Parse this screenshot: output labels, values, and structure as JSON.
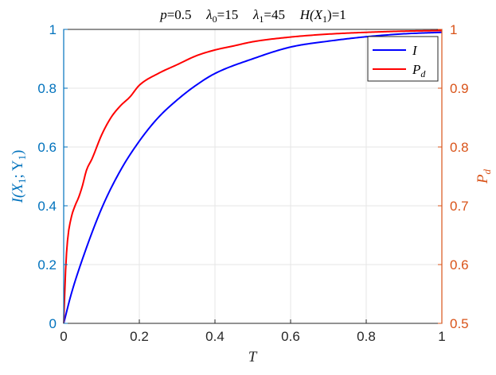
{
  "chart_data": {
    "type": "line",
    "title": {
      "p_label": "p",
      "p_value": "=0.5",
      "lambda0_label": "λ",
      "lambda0_sub": "0",
      "lambda0_value": "=15",
      "lambda1_label": "λ",
      "lambda1_sub": "1",
      "lambda1_value": "=45",
      "entropy_label": "H(X",
      "entropy_sub": "1",
      "entropy_close": ")",
      "entropy_value": "=1"
    },
    "xlabel": "T",
    "ylabel_left": {
      "main": "I(X",
      "sub1": "1",
      "mid": "; Y",
      "sub2": "1",
      "close": ")"
    },
    "ylabel_right": {
      "main": "P",
      "sub": "d"
    },
    "xlim": [
      0,
      1
    ],
    "ylim_left": [
      0,
      1
    ],
    "ylim_right": [
      0.5,
      1
    ],
    "x_ticks": [
      "0",
      "0.2",
      "0.4",
      "0.6",
      "0.8",
      "1"
    ],
    "y_ticks_left": [
      "0",
      "0.2",
      "0.4",
      "0.6",
      "0.8",
      "1"
    ],
    "y_ticks_right": [
      "0.5",
      "0.6",
      "0.7",
      "0.8",
      "0.9",
      "1"
    ],
    "grid": true,
    "legend_position": "top-right",
    "legend": [
      {
        "label": "I",
        "sub": "",
        "color": "#0000ff"
      },
      {
        "label": "P",
        "sub": "d",
        "color": "#ff0000"
      }
    ],
    "colors": {
      "left_axis": "#0072bd",
      "right_axis": "#d95319",
      "I": "#0000ff",
      "Pd": "#ff0000",
      "grid": "#e6e6e6"
    },
    "series": [
      {
        "name": "I",
        "axis": "left",
        "x": [
          0,
          0.02,
          0.05,
          0.1,
          0.15,
          0.2,
          0.25,
          0.3,
          0.35,
          0.4,
          0.5,
          0.6,
          0.7,
          0.8,
          0.9,
          1.0
        ],
        "y": [
          0,
          0.1,
          0.22,
          0.39,
          0.52,
          0.62,
          0.7,
          0.76,
          0.81,
          0.85,
          0.9,
          0.94,
          0.96,
          0.975,
          0.985,
          0.99
        ]
      },
      {
        "name": "Pd",
        "axis": "right",
        "x": [
          0,
          0.005,
          0.01,
          0.02,
          0.03,
          0.04,
          0.05,
          0.06,
          0.075,
          0.1,
          0.125,
          0.15,
          0.175,
          0.2,
          0.25,
          0.3,
          0.35,
          0.4,
          0.45,
          0.5,
          0.6,
          0.7,
          0.8,
          0.9,
          1.0
        ],
        "y": [
          0.5,
          0.59,
          0.64,
          0.68,
          0.7,
          0.715,
          0.735,
          0.76,
          0.78,
          0.82,
          0.85,
          0.87,
          0.885,
          0.905,
          0.925,
          0.94,
          0.955,
          0.965,
          0.972,
          0.979,
          0.987,
          0.992,
          0.995,
          0.997,
          0.998
        ]
      }
    ]
  }
}
